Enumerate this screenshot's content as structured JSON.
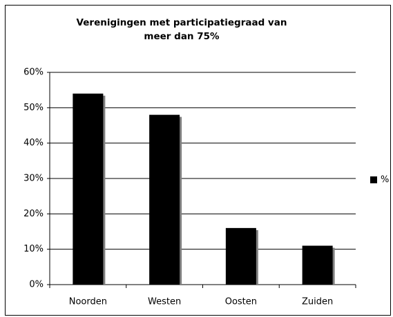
{
  "chart_data": {
    "type": "bar",
    "title": [
      "Verenigingen met participatiegraad van",
      "meer dan 75%"
    ],
    "categories": [
      "Noorden",
      "Westen",
      "Oosten",
      "Zuiden"
    ],
    "series": [
      {
        "name": "%",
        "color": "#000000",
        "values": [
          54,
          48,
          16,
          11
        ]
      }
    ],
    "ylim": [
      0,
      60
    ],
    "yticks": [
      {
        "value": 0,
        "label": "0%"
      },
      {
        "value": 10,
        "label": "10%"
      },
      {
        "value": 20,
        "label": "20%"
      },
      {
        "value": 30,
        "label": "30%"
      },
      {
        "value": 40,
        "label": "40%"
      },
      {
        "value": 50,
        "label": "50%"
      },
      {
        "value": 60,
        "label": "60%"
      }
    ],
    "grid": true,
    "legend": "right"
  }
}
